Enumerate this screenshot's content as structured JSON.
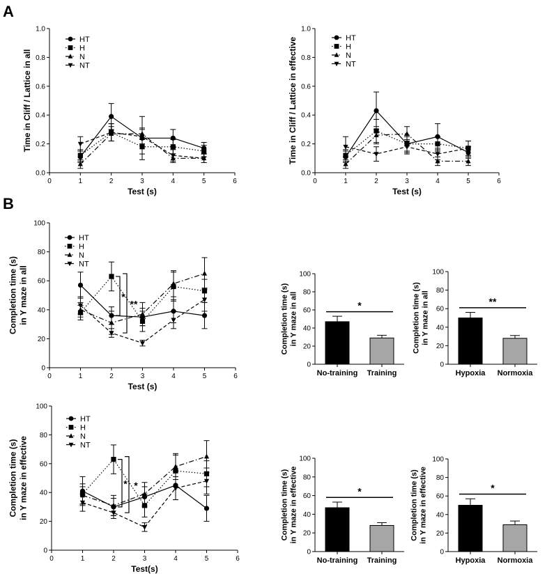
{
  "panel_labels": [
    "A",
    "B"
  ],
  "legend_labels": [
    "HT",
    "H",
    "N",
    "NT"
  ],
  "colors": {
    "black": "#000000",
    "gray": "#a6a6a6"
  },
  "chart_data": [
    {
      "type": "line",
      "xlabel": "Test (s)",
      "ylabel": "Time in Cliff / Lattice in all",
      "xlim": [
        0,
        6
      ],
      "ylim": [
        0,
        1.0
      ],
      "xticks": [
        0,
        1,
        2,
        3,
        4,
        5,
        6
      ],
      "yticks": [
        0.0,
        0.2,
        0.4,
        0.6,
        0.8,
        1.0
      ],
      "yticklabels": [
        "0.0",
        "0.2",
        "0.4",
        "0.6",
        "0.8",
        "1.0"
      ],
      "x": [
        1,
        2,
        3,
        4,
        5
      ],
      "series": [
        {
          "name": "HT",
          "marker": "circle",
          "dash": "solid",
          "values": [
            0.11,
            0.39,
            0.24,
            0.24,
            0.17
          ],
          "errors": [
            0.04,
            0.09,
            0.15,
            0.06,
            0.04
          ]
        },
        {
          "name": "H",
          "marker": "square",
          "dash": "dot",
          "values": [
            0.12,
            0.28,
            0.18,
            0.18,
            0.15
          ],
          "errors": [
            0.04,
            0.06,
            0.05,
            0.05,
            0.04
          ]
        },
        {
          "name": "N",
          "marker": "triangle-up",
          "dash": "dashdot",
          "values": [
            0.06,
            0.27,
            0.27,
            0.1,
            0.1
          ],
          "errors": [
            0.03,
            0.05,
            0.04,
            0.03,
            0.03
          ]
        },
        {
          "name": "NT",
          "marker": "triangle-down",
          "dash": "dash",
          "values": [
            0.2,
            0.28,
            0.25,
            0.12,
            0.1
          ],
          "errors": [
            0.05,
            0.06,
            0.05,
            0.04,
            0.03
          ]
        }
      ],
      "annotations": []
    },
    {
      "type": "line",
      "xlabel": "Test (s)",
      "ylabel": "Time in Cliff / Lattice in effective",
      "xlim": [
        0,
        6
      ],
      "ylim": [
        0,
        1.0
      ],
      "xticks": [
        0,
        1,
        2,
        3,
        4,
        5,
        6
      ],
      "yticks": [
        0.0,
        0.2,
        0.4,
        0.6,
        0.8,
        1.0
      ],
      "yticklabels": [
        "0.0",
        "0.2",
        "0.4",
        "0.6",
        "0.8",
        "1.0"
      ],
      "x": [
        1,
        2,
        3,
        4,
        5
      ],
      "series": [
        {
          "name": "HT",
          "marker": "circle",
          "dash": "solid",
          "values": [
            0.11,
            0.43,
            0.2,
            0.25,
            0.14
          ],
          "errors": [
            0.04,
            0.13,
            0.05,
            0.09,
            0.04
          ]
        },
        {
          "name": "H",
          "marker": "square",
          "dash": "dot",
          "values": [
            0.12,
            0.29,
            0.2,
            0.2,
            0.17
          ],
          "errors": [
            0.04,
            0.08,
            0.06,
            0.05,
            0.05
          ]
        },
        {
          "name": "N",
          "marker": "triangle-up",
          "dash": "dashdot",
          "values": [
            0.06,
            0.26,
            0.27,
            0.08,
            0.08
          ],
          "errors": [
            0.03,
            0.06,
            0.05,
            0.03,
            0.03
          ]
        },
        {
          "name": "NT",
          "marker": "triangle-down",
          "dash": "dash",
          "values": [
            0.18,
            0.13,
            0.18,
            0.13,
            0.17
          ],
          "errors": [
            0.07,
            0.05,
            0.05,
            0.04,
            0.05
          ]
        }
      ],
      "annotations": []
    },
    {
      "type": "line",
      "xlabel": "Test (s)",
      "ylabel": "Completion time (s)\nin Y maze in all",
      "xlim": [
        0,
        6
      ],
      "ylim": [
        0,
        100
      ],
      "xticks": [
        0,
        1,
        2,
        3,
        4,
        5,
        6
      ],
      "yticks": [
        0,
        20,
        40,
        60,
        80,
        100
      ],
      "yticklabels": [
        "0",
        "20",
        "40",
        "60",
        "80",
        "100"
      ],
      "x": [
        1,
        2,
        3,
        4,
        5
      ],
      "series": [
        {
          "name": "HT",
          "marker": "circle",
          "dash": "solid",
          "values": [
            57,
            36,
            35,
            39,
            36
          ],
          "errors": [
            9,
            6,
            6,
            8,
            9
          ]
        },
        {
          "name": "H",
          "marker": "square",
          "dash": "dot",
          "values": [
            38,
            63,
            32,
            56,
            53
          ],
          "errors": [
            5,
            10,
            7,
            10,
            8
          ]
        },
        {
          "name": "N",
          "marker": "triangle-up",
          "dash": "dashdot",
          "values": [
            40,
            31,
            37,
            58,
            65
          ],
          "errors": [
            5,
            8,
            8,
            9,
            11
          ]
        },
        {
          "name": "NT",
          "marker": "triangle-down",
          "dash": "dash",
          "values": [
            43,
            24,
            17,
            33,
            47
          ],
          "errors": [
            6,
            3,
            2,
            6,
            8
          ]
        }
      ],
      "annotations": [
        "*",
        "**"
      ]
    },
    {
      "type": "line",
      "xlabel": "Test(s)",
      "ylabel": "Completion time (s)\nin Y maze in effective",
      "xlim": [
        0,
        6
      ],
      "ylim": [
        0,
        100
      ],
      "xticks": [
        0,
        1,
        2,
        3,
        4,
        5,
        6
      ],
      "yticks": [
        0,
        20,
        40,
        60,
        80,
        100
      ],
      "yticklabels": [
        "0",
        "20",
        "40",
        "60",
        "80",
        "100"
      ],
      "x": [
        1,
        2,
        3,
        4,
        5
      ],
      "series": [
        {
          "name": "HT",
          "marker": "circle",
          "dash": "solid",
          "values": [
            41,
            30,
            37,
            45,
            29
          ],
          "errors": [
            10,
            6,
            7,
            10,
            9
          ]
        },
        {
          "name": "H",
          "marker": "square",
          "dash": "dot",
          "values": [
            39,
            63,
            31,
            55,
            53
          ],
          "errors": [
            7,
            10,
            8,
            11,
            9
          ]
        },
        {
          "name": "N",
          "marker": "triangle-up",
          "dash": "dashdot",
          "values": [
            38,
            31,
            39,
            58,
            65
          ],
          "errors": [
            6,
            7,
            8,
            9,
            11
          ]
        },
        {
          "name": "NT",
          "marker": "triangle-down",
          "dash": "dash",
          "values": [
            33,
            26,
            16,
            43,
            48
          ],
          "errors": [
            6,
            4,
            3,
            8,
            9
          ]
        }
      ],
      "annotations": [
        "*",
        "*"
      ]
    },
    {
      "type": "bar",
      "categories": [
        "No-training",
        "Training"
      ],
      "values": [
        47,
        29
      ],
      "errors": [
        6,
        3
      ],
      "colors": [
        "#000000",
        "#a6a6a6"
      ],
      "ylabel": "Completion time (s)\nin Y maze in all",
      "ylim": [
        0,
        100
      ],
      "yticks": [
        0,
        20,
        40,
        60,
        80,
        100
      ],
      "yticklabels": [
        "0",
        "20",
        "40",
        "60",
        "80",
        "100"
      ],
      "annotation": "*"
    },
    {
      "type": "bar",
      "categories": [
        "Hypoxia",
        "Normoxia"
      ],
      "values": [
        50,
        28
      ],
      "errors": [
        6,
        3
      ],
      "colors": [
        "#000000",
        "#a6a6a6"
      ],
      "ylabel": "Completion time (s)\nin Y maze in all",
      "ylim": [
        0,
        100
      ],
      "yticks": [
        0,
        20,
        40,
        60,
        80,
        100
      ],
      "yticklabels": [
        "0",
        "20",
        "40",
        "60",
        "80",
        "100"
      ],
      "annotation": "**"
    },
    {
      "type": "bar",
      "categories": [
        "No-training",
        "Training"
      ],
      "values": [
        47,
        28
      ],
      "errors": [
        6,
        3
      ],
      "colors": [
        "#000000",
        "#a6a6a6"
      ],
      "ylabel": "Completion time (s)\nin Y maze in effective",
      "ylim": [
        0,
        100
      ],
      "yticks": [
        0,
        20,
        40,
        60,
        80,
        100
      ],
      "yticklabels": [
        "0",
        "20",
        "40",
        "60",
        "80",
        "100"
      ],
      "annotation": "*"
    },
    {
      "type": "bar",
      "categories": [
        "Hypoxia",
        "Normoxia"
      ],
      "values": [
        50,
        29
      ],
      "errors": [
        7,
        4
      ],
      "colors": [
        "#000000",
        "#a6a6a6"
      ],
      "ylabel": "Completion time (s)\nin Y maze in effective",
      "ylim": [
        0,
        100
      ],
      "yticks": [
        0,
        20,
        40,
        60,
        80,
        100
      ],
      "yticklabels": [
        "0",
        "20",
        "40",
        "60",
        "80",
        "100"
      ],
      "annotation": "*"
    }
  ]
}
